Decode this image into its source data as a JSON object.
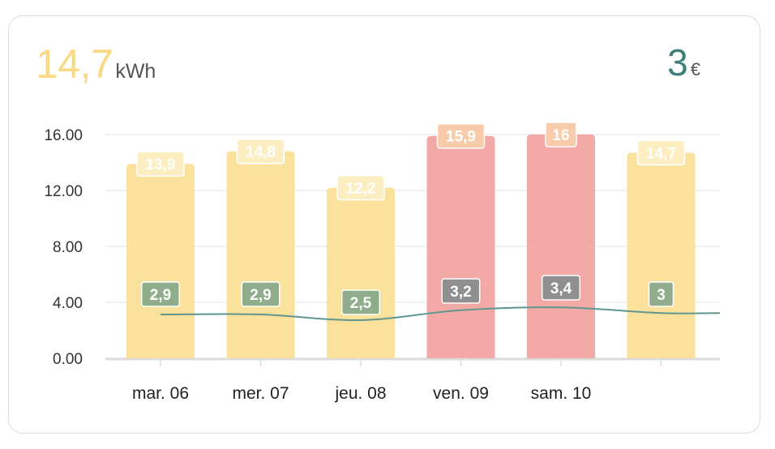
{
  "header": {
    "energy_value": "14,7",
    "energy_unit": "kWh",
    "cost_value": "3",
    "cost_unit": "€"
  },
  "colors": {
    "bar_normal": "#fae29c",
    "bar_high": "#f3aaa6",
    "label_normal_bg": "#fdeec2",
    "label_high_bg": "#f8ccaa",
    "line": "#5f9690",
    "cost_label_normal": "#8fad8a",
    "cost_label_high": "#8f8f8f"
  },
  "chart_data": {
    "type": "bar",
    "categories": [
      "mar. 06",
      "mer. 07",
      "jeu. 08",
      "ven. 09",
      "sam. 10",
      ""
    ],
    "series": [
      {
        "type": "bar",
        "values": [
          13.9,
          14.8,
          12.2,
          15.9,
          16,
          14.7
        ],
        "labels": [
          "13,9",
          "14,8",
          "12,2",
          "15,9",
          "16",
          "14,7"
        ],
        "highlight": [
          false,
          false,
          false,
          true,
          true,
          false
        ]
      },
      {
        "type": "line",
        "values": [
          2.9,
          2.9,
          2.5,
          3.2,
          3.4,
          3
        ],
        "labels": [
          "2,9",
          "2,9",
          "2,5",
          "3,2",
          "3,4",
          "3"
        ]
      }
    ],
    "yticks": [
      "0.00",
      "4.00",
      "8.00",
      "12.00",
      "16.00"
    ],
    "ylim": [
      0,
      16
    ],
    "grid": true,
    "legend": "none"
  }
}
